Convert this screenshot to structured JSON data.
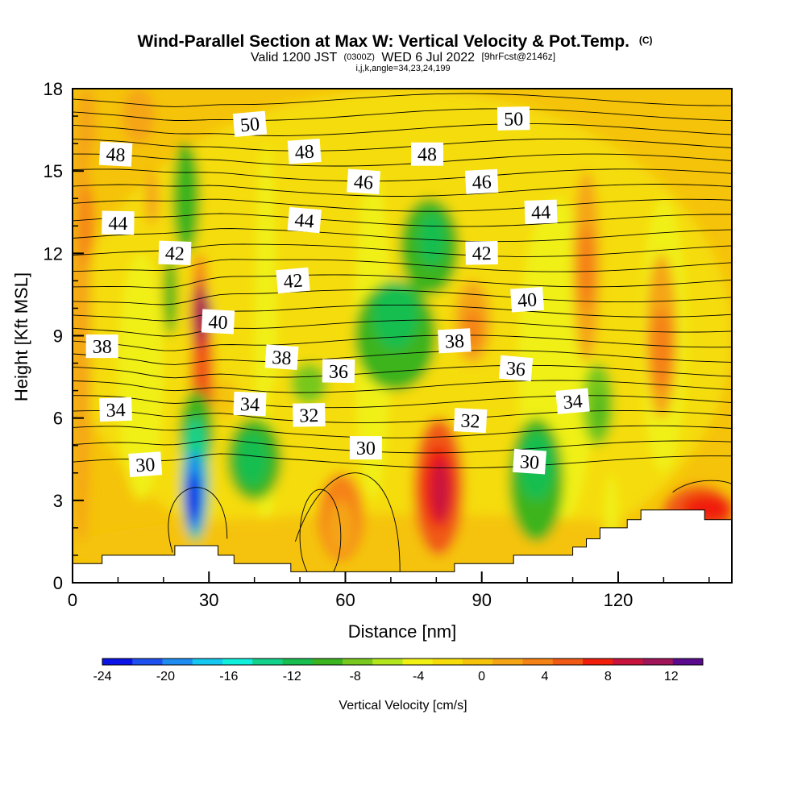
{
  "header": {
    "title": "Wind-Parallel Section at Max W: Vertical Velocity & Pot.Temp.",
    "copyright": "(C)",
    "valid_prefix": "Valid 1200 JST",
    "valid_utc": "(0300Z)",
    "valid_date": "WED 6 Jul 2022",
    "forecast": "[9hrFcst@2146z]",
    "indices": "i,j,k,angle=34,23,24,199"
  },
  "chart_data": {
    "type": "heatmap",
    "title": "Wind-Parallel Section at Max W: Vertical Velocity & Pot.Temp.",
    "xlabel": "Distance [nm]",
    "ylabel": "Height [Kft MSL]",
    "xlim": [
      0,
      145
    ],
    "ylim": [
      0,
      18
    ],
    "x_ticks": [
      0,
      30,
      60,
      90,
      120
    ],
    "y_ticks": [
      0,
      3,
      6,
      9,
      12,
      15,
      18
    ],
    "colorbar": {
      "label": "Vertical Velocity [cm/s]",
      "min": -24,
      "max": 14,
      "step": 2,
      "tick_values": [
        -24,
        -20,
        -16,
        -12,
        -8,
        -4,
        0,
        4,
        8,
        12
      ],
      "colors": [
        "#0a14e6",
        "#1e50f0",
        "#1e8cf0",
        "#14c8f0",
        "#10eedc",
        "#14d28c",
        "#18be50",
        "#3cb41e",
        "#78c81e",
        "#b4e61e",
        "#f0f014",
        "#f5dc0a",
        "#f5c30a",
        "#f5a514",
        "#f58214",
        "#f05a14",
        "#f01e0a",
        "#c8143c",
        "#a0145a",
        "#5a0a8c"
      ]
    },
    "theta_labels": [
      {
        "value": 50,
        "x": 39,
        "z": 16.7
      },
      {
        "value": 50,
        "x": 97,
        "z": 16.9
      },
      {
        "value": 48,
        "x": 9.5,
        "z": 15.6
      },
      {
        "value": 48,
        "x": 51,
        "z": 15.7
      },
      {
        "value": 48,
        "x": 78,
        "z": 15.6
      },
      {
        "value": 46,
        "x": 64,
        "z": 14.6
      },
      {
        "value": 46,
        "x": 90,
        "z": 14.6
      },
      {
        "value": 44,
        "x": 10,
        "z": 13.1
      },
      {
        "value": 44,
        "x": 51,
        "z": 13.2
      },
      {
        "value": 44,
        "x": 103,
        "z": 13.5
      },
      {
        "value": 42,
        "x": 22.5,
        "z": 12.0
      },
      {
        "value": 42,
        "x": 48.5,
        "z": 11.0
      },
      {
        "value": 42,
        "x": 90,
        "z": 12.0
      },
      {
        "value": 40,
        "x": 32,
        "z": 9.5
      },
      {
        "value": 40,
        "x": 100,
        "z": 10.3
      },
      {
        "value": 38,
        "x": 6.5,
        "z": 8.6
      },
      {
        "value": 38,
        "x": 46,
        "z": 8.2
      },
      {
        "value": 38,
        "x": 84,
        "z": 8.8
      },
      {
        "value": 36,
        "x": 58.5,
        "z": 7.7
      },
      {
        "value": 36,
        "x": 97.5,
        "z": 7.8
      },
      {
        "value": 34,
        "x": 9.5,
        "z": 6.3
      },
      {
        "value": 34,
        "x": 39,
        "z": 6.5
      },
      {
        "value": 34,
        "x": 110,
        "z": 6.6
      },
      {
        "value": 32,
        "x": 52,
        "z": 6.1
      },
      {
        "value": 32,
        "x": 87.5,
        "z": 5.9
      },
      {
        "value": 30,
        "x": 16,
        "z": 4.3
      },
      {
        "value": 30,
        "x": 64.5,
        "z": 4.9
      },
      {
        "value": 30,
        "x": 100.5,
        "z": 4.4
      }
    ],
    "terrain": [
      [
        0,
        0.7
      ],
      [
        6.5,
        0.7
      ],
      [
        6.5,
        1.0
      ],
      [
        22.5,
        1.0
      ],
      [
        22.5,
        1.35
      ],
      [
        32,
        1.35
      ],
      [
        32,
        1.0
      ],
      [
        35.5,
        1.0
      ],
      [
        35.5,
        0.7
      ],
      [
        48,
        0.7
      ],
      [
        48,
        0.4
      ],
      [
        84,
        0.4
      ],
      [
        84,
        0.7
      ],
      [
        97,
        0.7
      ],
      [
        97,
        1.0
      ],
      [
        110,
        1.0
      ],
      [
        110,
        1.3
      ],
      [
        113,
        1.3
      ],
      [
        113,
        1.6
      ],
      [
        116,
        1.6
      ],
      [
        116,
        2.0
      ],
      [
        122,
        2.0
      ],
      [
        122,
        2.3
      ],
      [
        125,
        2.3
      ],
      [
        125,
        2.65
      ],
      [
        139,
        2.65
      ],
      [
        139,
        2.3
      ],
      [
        145,
        2.3
      ]
    ]
  }
}
